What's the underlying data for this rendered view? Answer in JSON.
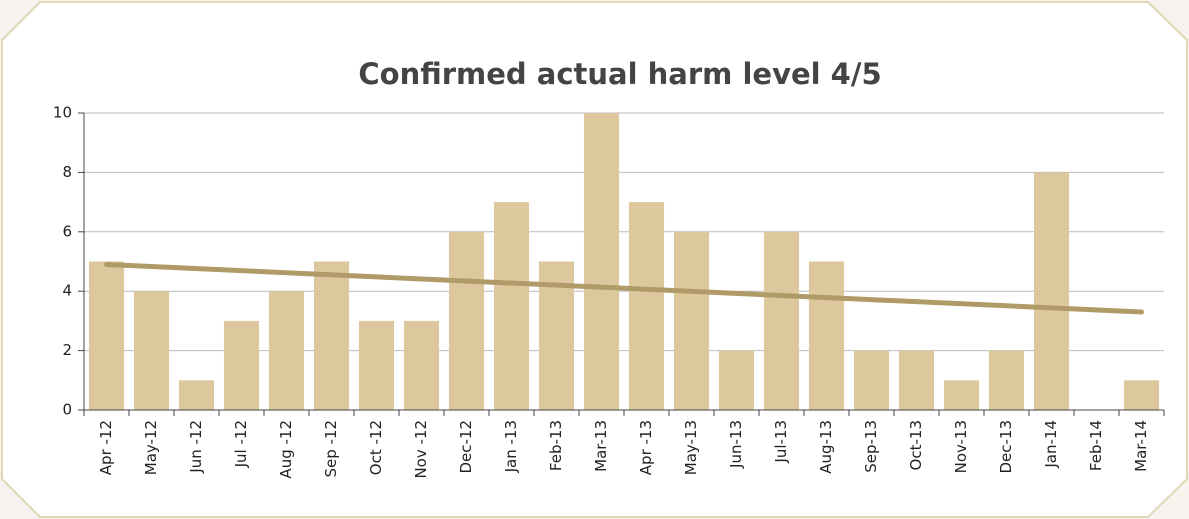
{
  "chart_data": {
    "type": "bar",
    "title": "Confirmed actual harm level 4/5",
    "categories": [
      "Apr -12",
      "May-12",
      "Jun -12",
      "Jul -12",
      "Aug -12",
      "Sep -12",
      "Oct -12",
      "Nov -12",
      "Dec-12",
      "Jan -13",
      "Feb-13",
      "Mar-13",
      "Apr -13",
      "May-13",
      "Jun-13",
      "Jul-13",
      "Aug-13",
      "Sep-13",
      "Oct-13",
      "Nov-13",
      "Dec-13",
      "Jan-14",
      "Feb-14",
      "Mar-14"
    ],
    "values": [
      5,
      4,
      1,
      3,
      4,
      5,
      3,
      3,
      6,
      7,
      5,
      10,
      7,
      6,
      2,
      6,
      5,
      2,
      2,
      1,
      2,
      8,
      0,
      1
    ],
    "color": "#dcc89c",
    "trend": {
      "color": "#b09a68",
      "values": [
        4.9,
        3.3
      ]
    },
    "ylim": [
      0,
      10
    ],
    "yticks": [
      0,
      2,
      4,
      6,
      8,
      10
    ],
    "grid": true
  }
}
